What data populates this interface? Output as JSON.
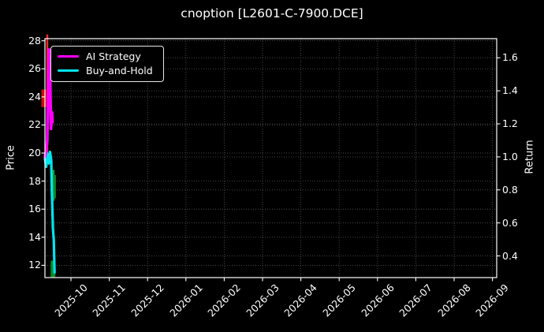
{
  "title": "cnoption [L2601-C-7900.DCE]",
  "legend": {
    "items": [
      {
        "label": "AI Strategy",
        "color": "#ff00ff"
      },
      {
        "label": "Buy-and-Hold",
        "color": "#00e5ee"
      }
    ]
  },
  "axes": {
    "left_label": "Price",
    "right_label": "Return",
    "price_ticks": [
      28,
      26,
      24,
      22,
      20,
      18,
      16,
      14,
      12
    ],
    "return_ticks": [
      "1.6",
      "1.4",
      "1.2",
      "1.0",
      "0.8",
      "0.6",
      "0.4"
    ],
    "x_ticks": [
      "2025-10",
      "2025-11",
      "2025-12",
      "2026-01",
      "2026-02",
      "2026-03",
      "2026-04",
      "2026-05",
      "2026-06",
      "2026-07",
      "2026-08",
      "2026-09"
    ]
  },
  "chart_data": {
    "type": "line",
    "title": "cnoption [L2601-C-7900.DCE]",
    "xlabel": "",
    "ylabel_left": "Price",
    "ylabel_right": "Return",
    "x_axis": {
      "tick_labels": [
        "2025-10",
        "2025-11",
        "2025-12",
        "2026-01",
        "2026-02",
        "2026-03",
        "2026-04",
        "2026-05",
        "2026-06",
        "2026-07",
        "2026-08",
        "2026-09"
      ],
      "note": "data occupies only first ~9 days at far left edge of axis"
    },
    "price_axis_range": [
      11.1,
      28.15
    ],
    "return_axis_range": [
      0.27,
      1.72
    ],
    "grid": "dotted, both price and return tick levels, color #4d4d4d",
    "legend_position": "upper left",
    "series": [
      {
        "name": "AI Strategy",
        "axis": "return",
        "color": "#ff00ff",
        "points": [
          [
            0,
            1.0
          ],
          [
            0.8,
            1.03
          ],
          [
            1.8,
            1.1
          ],
          [
            3.2,
            1.65
          ],
          [
            3.8,
            1.6
          ],
          [
            4.8,
            1.17
          ],
          [
            5.6,
            1.27
          ],
          [
            6.0,
            1.21
          ]
        ]
      },
      {
        "name": "Buy-and-Hold",
        "axis": "return",
        "color": "#00e5ee",
        "points": [
          [
            0,
            0.99
          ],
          [
            1,
            0.94
          ],
          [
            2,
            1.02
          ],
          [
            3,
            0.96
          ],
          [
            4,
            1.03
          ],
          [
            5,
            0.98
          ],
          [
            5.5,
            0.79
          ],
          [
            6.3,
            0.57
          ],
          [
            7,
            0.5
          ],
          [
            7.6,
            0.3
          ]
        ]
      }
    ],
    "candles": [
      {
        "day": 0.3,
        "open": 23.3,
        "high": 28.45,
        "low": 19.9,
        "close": 24.5,
        "direction": "up",
        "body_w": 9,
        "wick_dx": 2.5
      },
      {
        "day": 6.9,
        "open": 18.4,
        "high": 18.8,
        "low": 16.6,
        "close": 16.8,
        "direction": "down",
        "body_w": 4.6,
        "wick_dx": 0
      },
      {
        "day": 6.4,
        "open": 12.3,
        "high": 12.3,
        "low": 11.1,
        "close": 11.2,
        "direction": "down",
        "body_w": 5,
        "wick_dx": 0
      }
    ],
    "candle_colors": {
      "up": {
        "wick": "#ff2a2a",
        "body": "#cf0f0f"
      },
      "down": {
        "wick": "#0f9e2f",
        "body": "#0c8c28"
      }
    }
  },
  "colors": {
    "background": "#000000",
    "text": "#ffffff",
    "spine": "#ffffff",
    "grid": "#4d4d4d",
    "ai_strategy": "#ff00ff",
    "buy_and_hold": "#00e5ee"
  }
}
